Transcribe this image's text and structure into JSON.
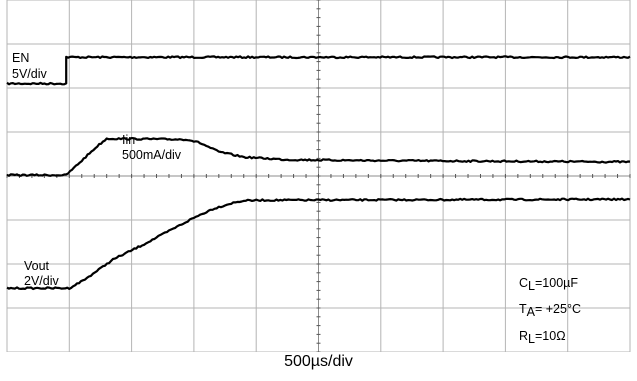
{
  "chart_data": {
    "type": "line",
    "title": "",
    "xlabel": "500µs/div",
    "x_divisions": 10,
    "y_divisions": 8,
    "grid": true,
    "x_unit_per_division_us": 500,
    "series": [
      {
        "name": "EN",
        "scale": "5V/div",
        "color": "#000000",
        "points": [
          [
            0,
            1.9
          ],
          [
            0.95,
            1.9
          ],
          [
            0.95,
            1.3
          ],
          [
            10,
            1.3
          ]
        ]
      },
      {
        "name": "Iin",
        "scale": "500mA/div",
        "color": "#000000",
        "points": [
          [
            0,
            3.98
          ],
          [
            0.95,
            3.98
          ],
          [
            1.2,
            3.65
          ],
          [
            1.45,
            3.32
          ],
          [
            1.6,
            3.15
          ],
          [
            2.9,
            3.17
          ],
          [
            3.1,
            3.25
          ],
          [
            3.4,
            3.45
          ],
          [
            3.8,
            3.57
          ],
          [
            4.5,
            3.63
          ],
          [
            6,
            3.65
          ],
          [
            10,
            3.68
          ]
        ]
      },
      {
        "name": "Vout",
        "scale": "2V/div",
        "color": "#000000",
        "points": [
          [
            0,
            6.55
          ],
          [
            1.0,
            6.55
          ],
          [
            1.25,
            6.35
          ],
          [
            1.7,
            5.9
          ],
          [
            2.2,
            5.55
          ],
          [
            2.6,
            5.25
          ],
          [
            3.0,
            4.95
          ],
          [
            3.3,
            4.75
          ],
          [
            3.6,
            4.62
          ],
          [
            3.8,
            4.56
          ],
          [
            4.1,
            4.55
          ],
          [
            10,
            4.53
          ]
        ]
      }
    ],
    "annotations": [
      {
        "sym": "C",
        "sub": "L",
        "rest": "=100µF"
      },
      {
        "sym": "T",
        "sub": "A",
        "rest": "= +25°C"
      },
      {
        "sym": "R",
        "sub": "L",
        "rest": "=10Ω"
      }
    ]
  },
  "labels": {
    "en_name": "EN",
    "en_scale": "5V/div",
    "iin_name": "Iin",
    "iin_scale": "500mA/div",
    "vout_name": "Vout",
    "vout_scale": "2V/div",
    "timebase": "500µs/div"
  }
}
